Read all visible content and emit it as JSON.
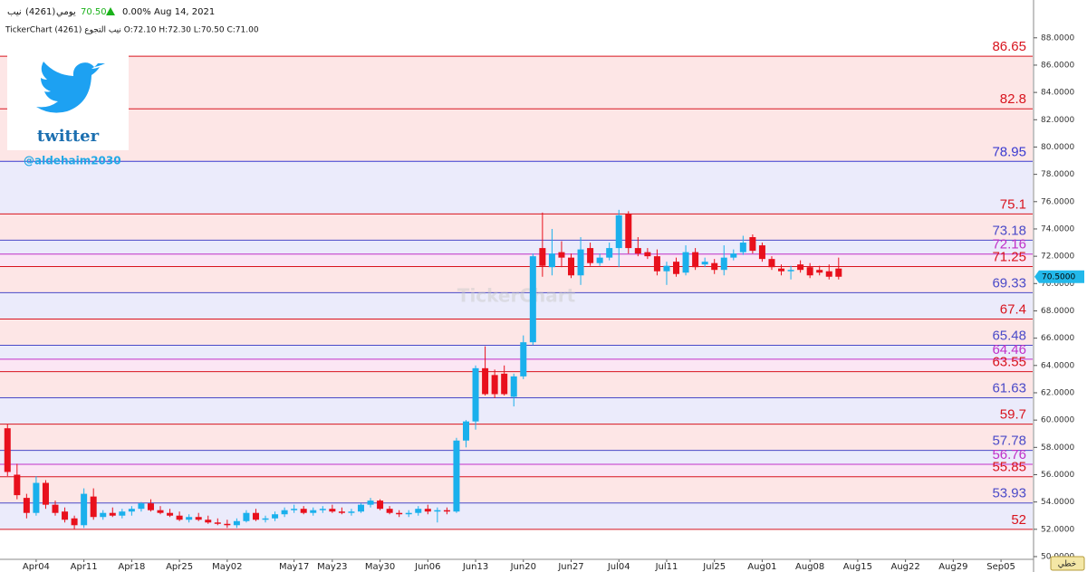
{
  "header": {
    "symbol": "نيب",
    "code": "(4261)",
    "period": "يومي",
    "price": "70.50",
    "change": "0.00%",
    "date": "Aug 14, 2021",
    "ohlc_line": "TickerChart نيب التجوع (4261) O:72.10 H:72.30 L:70.50 C:71.00"
  },
  "logo": {
    "word": "twitter",
    "handle": "@aldehaim2030"
  },
  "chart_data": {
    "type": "candlestick",
    "watermark": "TickerChart",
    "categories": [
      null,
      null,
      null,
      "Apr04",
      null,
      null,
      null,
      null,
      "Apr11",
      null,
      null,
      null,
      null,
      "Apr18",
      null,
      null,
      null,
      null,
      "Apr25",
      null,
      null,
      null,
      null,
      "May02",
      null,
      null,
      null,
      null,
      null,
      null,
      "May17",
      null,
      null,
      null,
      "May23",
      null,
      null,
      null,
      null,
      "May30",
      null,
      null,
      null,
      null,
      "Jun06",
      null,
      null,
      null,
      null,
      "Jun13",
      null,
      null,
      null,
      null,
      "Jun20",
      null,
      null,
      null,
      null,
      "Jun27",
      null,
      null,
      null,
      null,
      "Jul04",
      null,
      null,
      null,
      null,
      "Jul11",
      null,
      null,
      null,
      null,
      "Jul25",
      null,
      null,
      null,
      null,
      "Aug01",
      null,
      null,
      null,
      null,
      "Aug08",
      null,
      null,
      null,
      null,
      "Aug15",
      null,
      null,
      null,
      null,
      "Aug22",
      null,
      null,
      null,
      null,
      "Aug29",
      null,
      null,
      null,
      null,
      "Sep05",
      null,
      null,
      null
    ],
    "open": [
      59.4,
      56.0,
      54.3,
      53.2,
      55.4,
      53.8,
      53.3,
      52.8,
      52.3,
      54.4,
      52.9,
      53.2,
      53.0,
      53.3,
      53.5,
      53.9,
      53.4,
      53.2,
      53.0,
      52.7,
      52.9,
      52.7,
      52.5,
      52.4,
      52.3,
      52.6,
      53.2,
      52.7,
      52.8,
      53.1,
      53.4,
      53.5,
      53.2,
      53.4,
      53.5,
      53.3,
      53.2,
      53.3,
      53.8,
      54.1,
      53.5,
      53.2,
      53.1,
      53.2,
      53.5,
      53.3,
      53.4,
      53.3,
      58.5,
      59.9,
      63.8,
      63.3,
      63.4,
      61.7,
      63.2,
      65.7,
      72.6,
      71.2,
      72.3,
      71.9,
      70.6,
      72.6,
      71.5,
      71.9,
      72.6,
      75.1,
      72.6,
      72.3,
      72.0,
      70.9,
      71.6,
      70.8,
      72.3,
      71.4,
      71.5,
      71.0,
      71.9,
      72.3,
      73.4,
      72.8,
      71.8,
      71.1,
      70.9,
      71.4,
      71.2,
      71.0,
      70.9,
      71.1,
      null,
      null,
      null,
      null,
      null,
      null,
      null,
      null,
      null,
      null,
      null,
      null,
      null,
      null,
      null,
      null,
      null,
      null,
      null,
      null
    ],
    "high": [
      59.7,
      56.8,
      54.6,
      55.9,
      55.6,
      54.1,
      53.6,
      53.0,
      55.0,
      55.0,
      53.4,
      53.6,
      53.5,
      53.7,
      54.0,
      54.2,
      53.7,
      53.5,
      53.3,
      53.1,
      53.2,
      53.0,
      52.8,
      52.7,
      52.8,
      53.4,
      53.5,
      53.0,
      53.3,
      53.6,
      53.8,
      53.7,
      53.6,
      53.7,
      53.8,
      53.6,
      53.5,
      53.9,
      54.3,
      54.2,
      53.7,
      53.4,
      53.4,
      53.7,
      53.8,
      53.6,
      53.6,
      58.7,
      60.0,
      64.0,
      65.4,
      63.7,
      64.0,
      63.4,
      66.2,
      72.2,
      75.2,
      74.0,
      73.1,
      72.2,
      73.4,
      73.0,
      72.2,
      73.0,
      75.4,
      75.3,
      73.4,
      72.6,
      72.5,
      71.6,
      71.9,
      72.8,
      72.6,
      71.9,
      71.8,
      72.8,
      72.5,
      73.5,
      73.6,
      73.0,
      72.0,
      71.4,
      71.3,
      71.7,
      71.5,
      71.3,
      71.4,
      71.9,
      null,
      null,
      null,
      null,
      null,
      null,
      null,
      null,
      null,
      null,
      null,
      null,
      null,
      null,
      null,
      null,
      null,
      null,
      null,
      null
    ],
    "low": [
      55.9,
      54.2,
      52.8,
      53.0,
      53.5,
      53.0,
      52.5,
      52.0,
      52.1,
      52.7,
      52.7,
      52.9,
      52.8,
      53.0,
      53.3,
      53.3,
      53.1,
      52.9,
      52.6,
      52.5,
      52.6,
      52.4,
      52.3,
      52.1,
      52.1,
      52.5,
      52.6,
      52.5,
      52.6,
      52.9,
      53.2,
      53.1,
      53.0,
      53.2,
      53.2,
      53.1,
      53.0,
      53.2,
      53.6,
      53.4,
      53.1,
      52.9,
      52.9,
      53.0,
      53.1,
      52.5,
      53.1,
      53.2,
      58.0,
      59.3,
      61.8,
      61.6,
      61.8,
      61.0,
      63.0,
      65.5,
      70.5,
      70.6,
      71.2,
      70.4,
      69.9,
      71.3,
      71.3,
      71.7,
      71.2,
      72.2,
      72.0,
      71.8,
      70.6,
      69.9,
      70.5,
      70.6,
      71.0,
      71.2,
      70.7,
      70.6,
      71.7,
      72.1,
      72.2,
      71.6,
      71.0,
      70.6,
      70.3,
      70.8,
      70.4,
      70.6,
      70.3,
      70.3,
      null,
      null,
      null,
      null,
      null,
      null,
      null,
      null,
      null,
      null,
      null,
      null,
      null,
      null,
      null,
      null,
      null,
      null,
      null,
      null
    ],
    "close": [
      56.2,
      54.5,
      53.2,
      55.4,
      53.8,
      53.2,
      52.7,
      52.3,
      54.6,
      52.9,
      53.2,
      53.0,
      53.3,
      53.5,
      53.9,
      53.4,
      53.2,
      53.0,
      52.7,
      52.9,
      52.7,
      52.5,
      52.4,
      52.3,
      52.6,
      53.2,
      52.7,
      52.8,
      53.1,
      53.4,
      53.5,
      53.2,
      53.4,
      53.5,
      53.3,
      53.2,
      53.3,
      53.8,
      54.1,
      53.5,
      53.2,
      53.1,
      53.2,
      53.5,
      53.3,
      53.4,
      53.3,
      58.5,
      59.9,
      63.8,
      61.9,
      61.9,
      61.9,
      63.2,
      65.7,
      72.0,
      71.3,
      72.2,
      71.9,
      70.6,
      72.5,
      71.5,
      71.9,
      72.6,
      75.0,
      72.6,
      72.2,
      72.0,
      70.9,
      71.3,
      70.7,
      72.3,
      71.2,
      71.6,
      71.0,
      71.9,
      72.2,
      73.0,
      72.4,
      71.8,
      71.2,
      70.9,
      71.0,
      71.0,
      70.6,
      70.8,
      70.5,
      70.5,
      null,
      null,
      null,
      null,
      null,
      null,
      null,
      null,
      null,
      null,
      null,
      null,
      null,
      null,
      null,
      null,
      null,
      null,
      null,
      null
    ],
    "up_color": "#1ab0ec",
    "down_color": "#e8101c",
    "ylim": [
      49.8,
      88.45
    ],
    "yticks": [
      {
        "value": 50,
        "label": "50.0000"
      },
      {
        "value": 52,
        "label": "52.0000"
      },
      {
        "value": 54,
        "label": "54.0000"
      },
      {
        "value": 56,
        "label": "56.0000"
      },
      {
        "value": 58,
        "label": "58.0000"
      },
      {
        "value": 60,
        "label": "60.0000"
      },
      {
        "value": 62,
        "label": "62.0000"
      },
      {
        "value": 64,
        "label": "64.0000"
      },
      {
        "value": 66,
        "label": "66.0000"
      },
      {
        "value": 68,
        "label": "68.0000"
      },
      {
        "value": 70,
        "label": "70.0000"
      },
      {
        "value": 72,
        "label": "72.0000"
      },
      {
        "value": 74,
        "label": "74.0000"
      },
      {
        "value": 76,
        "label": "76.0000"
      },
      {
        "value": 78,
        "label": "78.0000"
      },
      {
        "value": 80,
        "label": "80.0000"
      },
      {
        "value": 82,
        "label": "82.0000"
      },
      {
        "value": 84,
        "label": "84.0000"
      },
      {
        "value": 86,
        "label": "86.0000"
      },
      {
        "value": 88,
        "label": "88.0000"
      }
    ],
    "levels": [
      {
        "value": 86.65,
        "color": "#d8141e",
        "fill": "#fde6e6"
      },
      {
        "value": 82.8,
        "color": "#d8141e",
        "fill": "#fde6e6"
      },
      {
        "value": 78.95,
        "color": "#3a3ad0",
        "fill": "#ebebfb"
      },
      {
        "value": 75.1,
        "color": "#d8141e",
        "fill": "#fde6e6"
      },
      {
        "value": 73.18,
        "color": "#4a4ac8",
        "fill": "#ebebfb"
      },
      {
        "value": 72.16,
        "color": "#c030c8",
        "fill": "#fbe6f4"
      },
      {
        "value": 71.25,
        "color": "#d8141e",
        "fill": "#fde6e6"
      },
      {
        "value": 69.33,
        "color": "#4a4ac8",
        "fill": "#ebebfb"
      },
      {
        "value": 67.4,
        "color": "#d8141e",
        "fill": "#fde6e6"
      },
      {
        "value": 65.48,
        "color": "#4a4ac8",
        "fill": "#ebebfb"
      },
      {
        "value": 64.46,
        "color": "#c030c8",
        "fill": "#fbe6f4"
      },
      {
        "value": 63.55,
        "color": "#d8141e",
        "fill": "#fde6e6"
      },
      {
        "value": 61.63,
        "color": "#4a4ac8",
        "fill": "#ebebfb"
      },
      {
        "value": 59.7,
        "color": "#d8141e",
        "fill": "#fde6e6"
      },
      {
        "value": 57.78,
        "color": "#4a4ac8",
        "fill": "#ebebfb"
      },
      {
        "value": 56.76,
        "color": "#c030c8",
        "fill": "#fbe6f4"
      },
      {
        "value": 55.85,
        "color": "#d8141e",
        "fill": "#fde6e6"
      },
      {
        "value": 53.93,
        "color": "#4a4ac8",
        "fill": "#ebebfb"
      },
      {
        "value": 52,
        "color": "#d8141e"
      }
    ],
    "last_price": {
      "value": 70.5,
      "label": "70.5000",
      "color": "#22b8ea"
    }
  },
  "button": {
    "label": "خطي"
  }
}
